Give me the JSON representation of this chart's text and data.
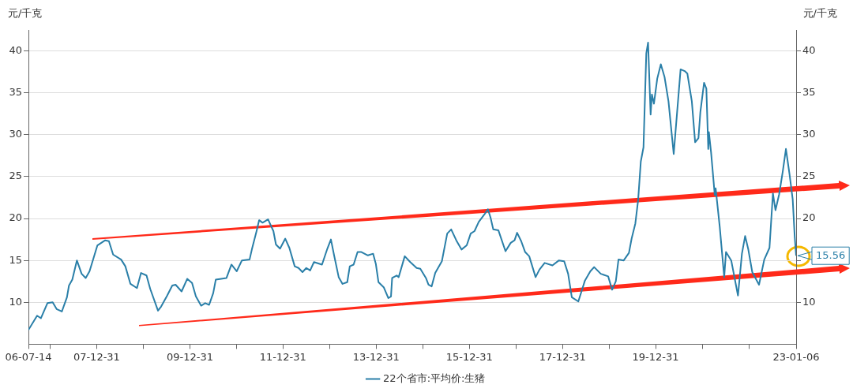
{
  "chart_data": {
    "type": "line",
    "ylabel": "元/千克",
    "y2label": "元/千克",
    "legend": "bottom",
    "grid": "y",
    "marker": "none",
    "line_style": "solid",
    "x": [
      "2006-07-14",
      "2006-09-20",
      "2006-10-20",
      "2006-12-10",
      "2007-01-20",
      "2007-02-20",
      "2007-04-02",
      "2007-05-12",
      "2007-05-28",
      "2007-06-23",
      "2007-07-29",
      "2007-09-04",
      "2007-10-06",
      "2007-11-05",
      "2008-01-06",
      "2008-03-07",
      "2008-04-05",
      "2008-05-08",
      "2008-07-10",
      "2008-08-12",
      "2008-09-21",
      "2008-11-11",
      "2008-12-13",
      "2009-01-25",
      "2009-02-23",
      "2009-04-25",
      "2009-05-20",
      "2009-07-06",
      "2009-08-15",
      "2009-09-10",
      "2009-10-27",
      "2009-12-10",
      "2010-01-17",
      "2010-02-16",
      "2010-03-29",
      "2010-04-30",
      "2010-05-31",
      "2010-07-02",
      "2010-07-22",
      "2010-09-03",
      "2010-10-14",
      "2010-11-22",
      "2011-01-02",
      "2011-02-12",
      "2011-04-13",
      "2011-05-01",
      "2011-06-07",
      "2011-06-27",
      "2011-07-24",
      "2011-09-05",
      "2011-10-17",
      "2011-11-06",
      "2011-12-08",
      "2012-01-18",
      "2012-02-19",
      "2012-04-01",
      "2012-05-01",
      "2012-06-01",
      "2012-07-01",
      "2012-07-31",
      "2012-08-30",
      "2012-11-01",
      "2012-12-13",
      "2013-01-10",
      "2013-02-04",
      "2013-03-12",
      "2013-04-11",
      "2013-05-18",
      "2013-06-07",
      "2013-07-07",
      "2013-08-07",
      "2013-09-06",
      "2013-10-27",
      "2013-12-07",
      "2013-12-28",
      "2014-01-18",
      "2014-02-28",
      "2014-04-05",
      "2014-04-26",
      "2014-05-05",
      "2014-06-10",
      "2014-06-25",
      "2014-08-12",
      "2014-09-24",
      "2014-11-13",
      "2014-12-12",
      "2015-01-25",
      "2015-02-14",
      "2015-03-11",
      "2015-04-08",
      "2015-05-30",
      "2015-07-11",
      "2015-08-11",
      "2015-09-20",
      "2015-10-31",
      "2015-12-11",
      "2016-01-11",
      "2016-02-10",
      "2016-03-14",
      "2016-05-03",
      "2016-05-25",
      "2016-06-15",
      "2016-07-06",
      "2016-08-15",
      "2016-10-10",
      "2016-11-20",
      "2016-12-20",
      "2017-01-09",
      "2017-02-10",
      "2017-03-13",
      "2017-04-14",
      "2017-06-03",
      "2017-07-03",
      "2017-08-13",
      "2017-10-13",
      "2017-12-03",
      "2018-01-13",
      "2018-02-13",
      "2018-03-14",
      "2018-05-04",
      "2018-06-25",
      "2018-08-06",
      "2018-09-05",
      "2018-10-27",
      "2018-12-24",
      "2019-01-24",
      "2019-02-22",
      "2019-03-15",
      "2019-04-25",
      "2019-06-05",
      "2019-06-26",
      "2019-07-25",
      "2019-08-16",
      "2019-09-06",
      "2019-09-27",
      "2019-10-19",
      "2019-11-02",
      "2019-11-22",
      "2019-12-02",
      "2019-12-18",
      "2020-01-13",
      "2020-02-10",
      "2020-03-10",
      "2020-04-10",
      "2020-05-21",
      "2020-07-14",
      "2020-08-15",
      "2020-09-05",
      "2020-10-10",
      "2020-11-05",
      "2020-12-01",
      "2020-12-16",
      "2021-01-14",
      "2021-02-01",
      "2021-02-16",
      "2021-02-21",
      "2021-03-10",
      "2021-04-08",
      "2021-04-15",
      "2021-05-17",
      "2021-06-21",
      "2021-07-05",
      "2021-08-15",
      "2021-10-07",
      "2021-11-07",
      "2021-12-02",
      "2021-12-27",
      "2022-01-27",
      "2022-03-21",
      "2022-05-01",
      "2022-06-11",
      "2022-07-08",
      "2022-07-28",
      "2022-08-26",
      "2022-09-23",
      "2022-10-18",
      "2022-11-15",
      "2022-12-10",
      "2022-12-26",
      "2023-01-06"
    ],
    "series": [
      {
        "name": "22个省市:平均价:生猪",
        "color": "#2a7fa8",
        "values": [
          6.7,
          8.4,
          8.1,
          9.9,
          10.0,
          9.2,
          8.9,
          10.6,
          12.0,
          12.7,
          15.0,
          13.4,
          12.9,
          13.7,
          16.8,
          17.4,
          17.3,
          15.7,
          15.1,
          14.3,
          12.2,
          11.7,
          13.5,
          13.2,
          11.6,
          9.0,
          9.5,
          10.8,
          12.0,
          12.1,
          11.3,
          12.8,
          12.3,
          10.7,
          9.6,
          9.9,
          9.7,
          11.1,
          12.7,
          12.8,
          12.9,
          14.5,
          13.7,
          15.0,
          15.1,
          16.3,
          18.5,
          19.8,
          19.5,
          19.9,
          18.5,
          16.9,
          16.4,
          17.6,
          16.5,
          14.3,
          14.1,
          13.6,
          14.1,
          13.8,
          14.8,
          14.5,
          16.4,
          17.5,
          15.6,
          13.0,
          12.2,
          12.4,
          14.3,
          14.5,
          16.0,
          16.0,
          15.6,
          15.8,
          14.6,
          12.4,
          11.8,
          10.5,
          10.7,
          12.9,
          13.2,
          13.0,
          15.5,
          14.8,
          14.1,
          14.0,
          12.9,
          12.1,
          11.9,
          13.5,
          14.9,
          18.2,
          18.7,
          17.4,
          16.3,
          16.8,
          18.2,
          18.5,
          19.6,
          20.6,
          21.1,
          20.1,
          18.7,
          18.6,
          16.1,
          17.1,
          17.4,
          18.3,
          17.3,
          16.0,
          15.5,
          13.0,
          13.9,
          14.7,
          14.4,
          15.0,
          14.9,
          13.4,
          10.6,
          10.1,
          12.6,
          13.7,
          14.2,
          13.4,
          13.1,
          11.5,
          12.5,
          15.1,
          15.0,
          15.9,
          17.6,
          19.4,
          22.2,
          26.8,
          28.5,
          39.7,
          41.0,
          32.4,
          34.8,
          33.7,
          36.7,
          38.4,
          36.9,
          34.0,
          27.7,
          37.8,
          37.6,
          37.3,
          34.0,
          29.1,
          29.6,
          32.7,
          36.2,
          35.5,
          28.3,
          30.3,
          27.9,
          22.8,
          23.6,
          19.0,
          13.0,
          16.0,
          15.0,
          10.8,
          15.8,
          17.9,
          16.3,
          13.6,
          12.1,
          15.1,
          16.5,
          23.0,
          21.0,
          22.9,
          25.6,
          28.3,
          25.3,
          22.3,
          17.8,
          15.56
        ]
      }
    ],
    "xlim": [
      "2006-07-14",
      "2023-01-06"
    ],
    "xticks": [
      {
        "value": "2006-07-14",
        "label": "06-07-14"
      },
      {
        "value": "2006-12-31",
        "label": null
      },
      {
        "value": "2007-12-31",
        "label": "07-12-31"
      },
      {
        "value": "2008-12-31",
        "label": null
      },
      {
        "value": "2009-12-31",
        "label": "09-12-31"
      },
      {
        "value": "2010-12-31",
        "label": null
      },
      {
        "value": "2011-12-31",
        "label": "11-12-31"
      },
      {
        "value": "2012-12-31",
        "label": null
      },
      {
        "value": "2013-12-31",
        "label": "13-12-31"
      },
      {
        "value": "2014-12-31",
        "label": null
      },
      {
        "value": "2015-12-31",
        "label": "15-12-31"
      },
      {
        "value": "2016-12-31",
        "label": null
      },
      {
        "value": "2017-12-31",
        "label": "17-12-31"
      },
      {
        "value": "2018-12-31",
        "label": null
      },
      {
        "value": "2019-12-31",
        "label": "19-12-31"
      },
      {
        "value": "2020-12-31",
        "label": null
      },
      {
        "value": "2021-12-31",
        "label": null
      },
      {
        "value": "2023-01-06",
        "label": "23-01-06"
      }
    ],
    "ylim": [
      5,
      42.5
    ],
    "yticks": [
      10,
      15,
      20,
      25,
      30,
      35,
      40
    ],
    "y2lim": [
      5,
      42.5
    ],
    "y2ticks": [
      10,
      {
        "value": 15,
        "label": null
      },
      20,
      25,
      30,
      35,
      40
    ],
    "annotations": [
      {
        "text": "15.56",
        "x": "2023-01-06",
        "y": 15.56
      }
    ]
  }
}
